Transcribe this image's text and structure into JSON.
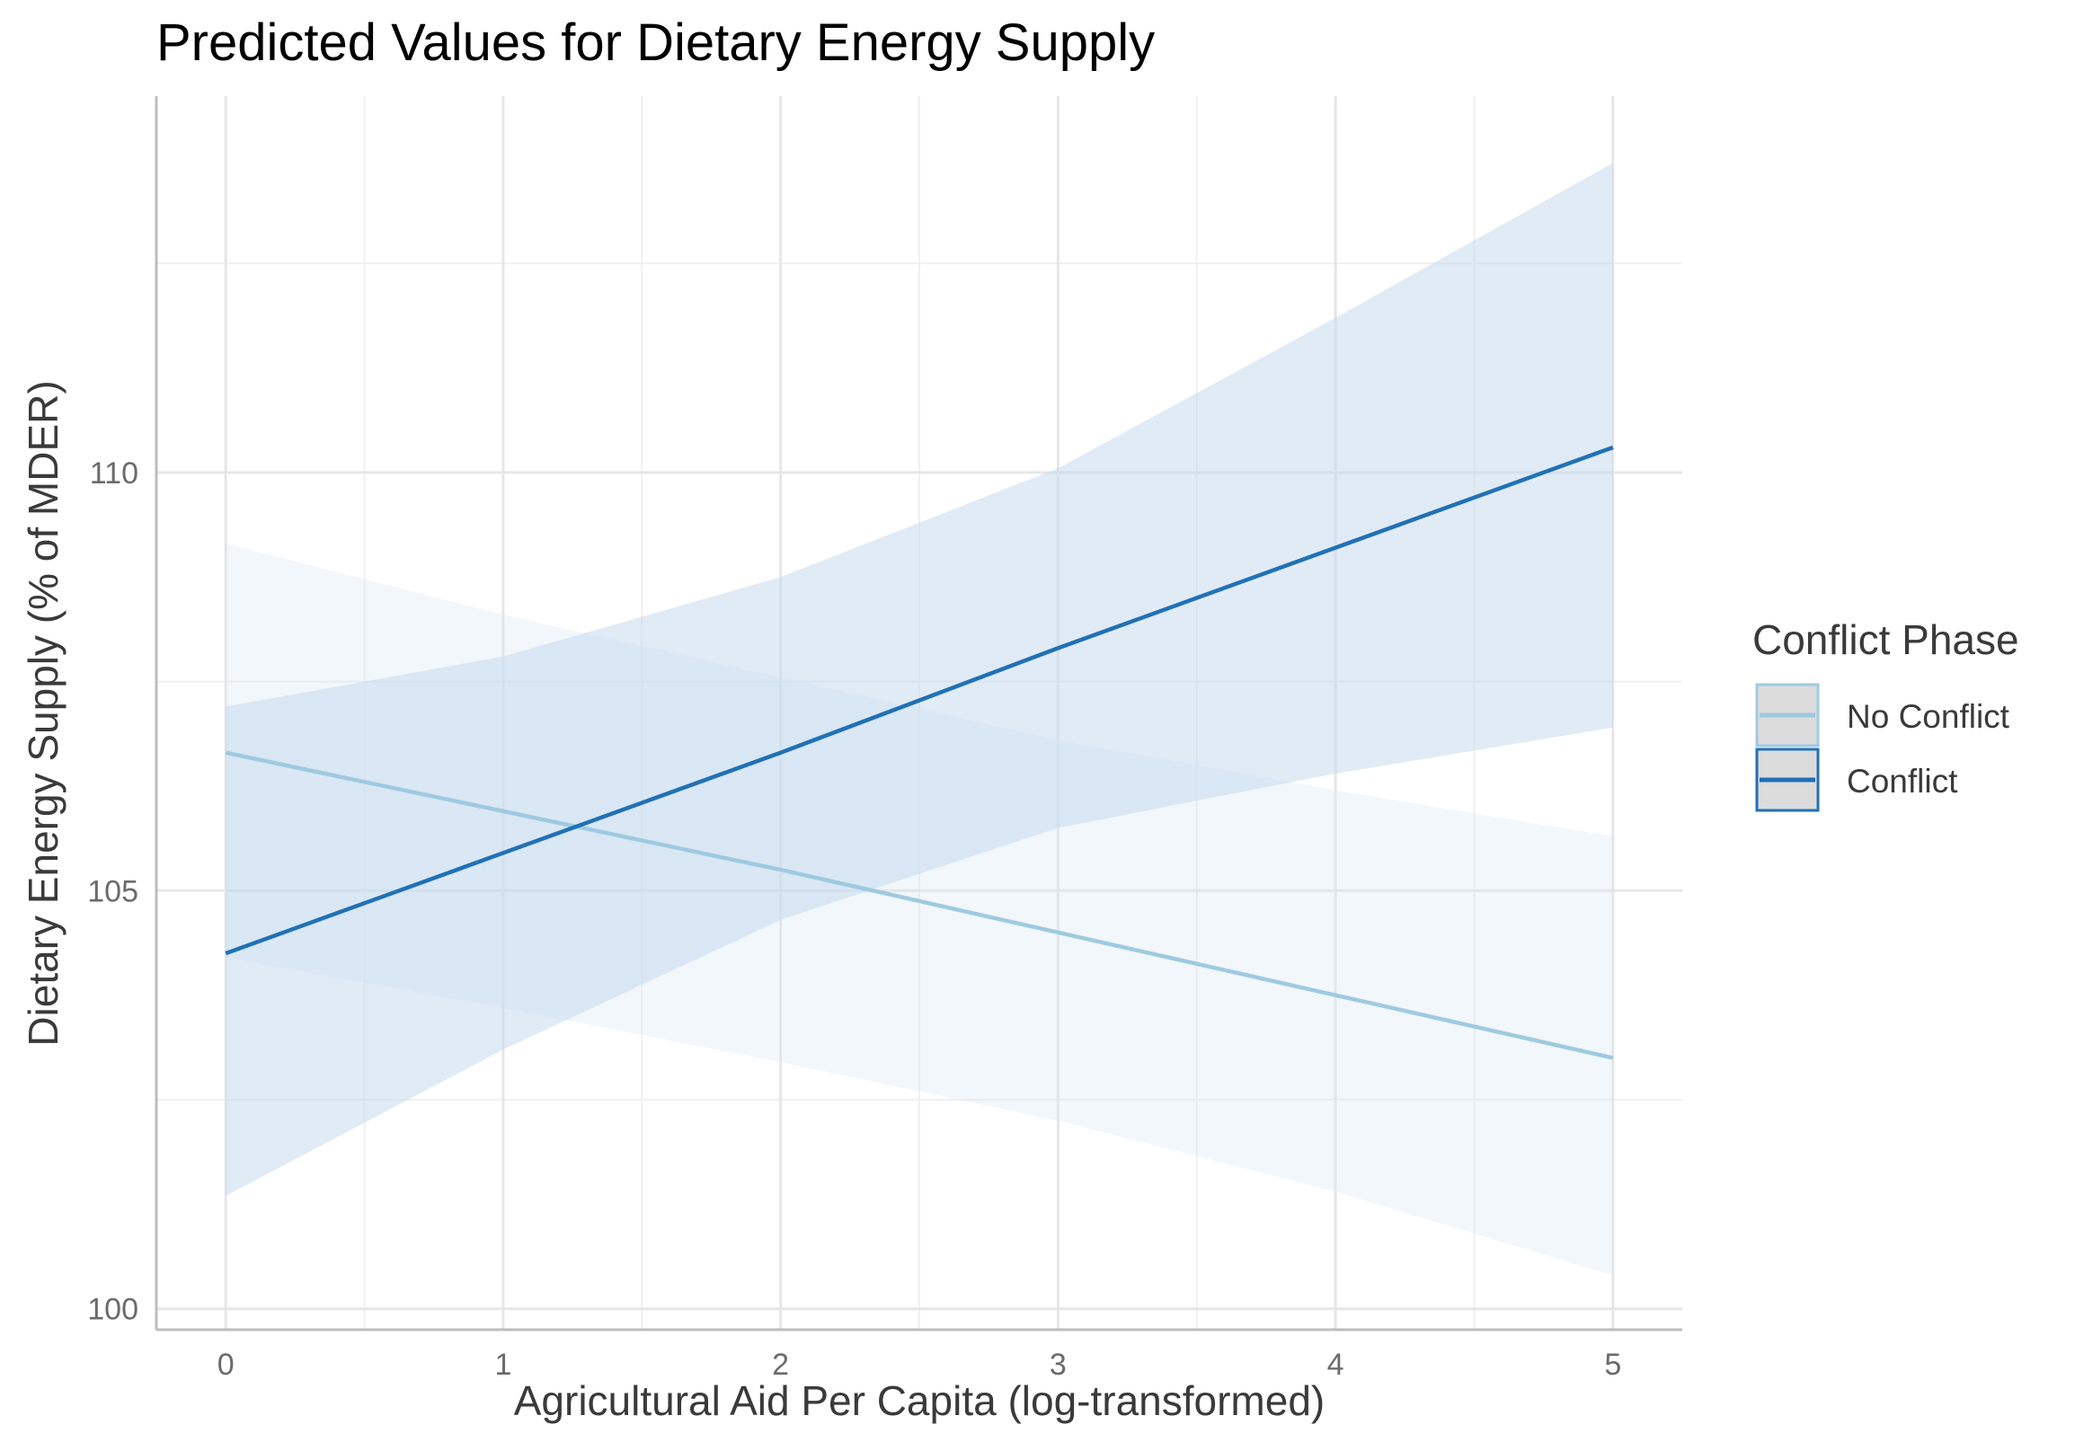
{
  "chart_data": {
    "type": "line",
    "title": "Predicted Values for Dietary Energy Supply",
    "xlabel": "Agricultural Aid Per Capita (log-transformed)",
    "ylabel": "Dietary Energy Supply (% of MDER)",
    "xlim": [
      -0.25,
      5.25
    ],
    "ylim": [
      99.75,
      114.5
    ],
    "x_ticks": [
      0,
      1,
      2,
      3,
      4,
      5
    ],
    "x_tick_labels": [
      "0",
      "1",
      "2",
      "3",
      "4",
      "5"
    ],
    "y_ticks": [
      100,
      105,
      110
    ],
    "y_tick_labels": [
      "100",
      "105",
      "110"
    ],
    "x_minor_ticks": [
      0.5,
      1.5,
      2.5,
      3.5,
      4.5
    ],
    "y_minor_ticks": [
      102.5,
      107.5,
      112.5
    ],
    "grid": true,
    "legend": {
      "title": "Conflict Phase",
      "position": "right"
    },
    "series": [
      {
        "name": "No Conflict",
        "color": "#9ecae1",
        "ribbon_color": "#d6e6f4",
        "x": [
          0,
          1,
          2,
          3,
          4,
          5
        ],
        "y": [
          106.65,
          105.95,
          105.25,
          104.5,
          103.75,
          103.0
        ],
        "lower": [
          104.2,
          103.6,
          102.95,
          102.25,
          101.4,
          100.4
        ],
        "upper": [
          109.15,
          108.3,
          107.55,
          106.8,
          106.2,
          105.65
        ]
      },
      {
        "name": "Conflict",
        "color": "#2171b5",
        "ribbon_color": "#c6dbef",
        "x": [
          0,
          1,
          2,
          3,
          4,
          5
        ],
        "y": [
          104.25,
          105.45,
          106.65,
          107.9,
          109.1,
          110.3
        ],
        "lower": [
          101.35,
          103.1,
          104.65,
          105.75,
          106.4,
          106.95
        ],
        "upper": [
          107.2,
          107.8,
          108.75,
          110.05,
          111.85,
          113.7
        ]
      }
    ]
  }
}
